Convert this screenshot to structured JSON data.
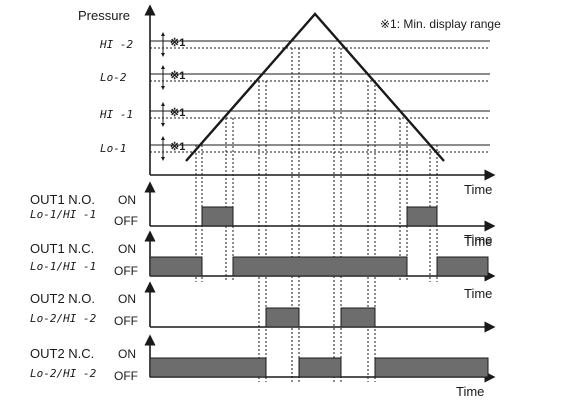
{
  "top": {
    "y_axis_label": "Pressure",
    "x_axis_label": "Time",
    "note": "※1: Min. display range",
    "levels": [
      {
        "code": "HI -2",
        "mark": "※1"
      },
      {
        "code": "Lo-2",
        "mark": "※1"
      },
      {
        "code": "HI -1",
        "mark": "※1"
      },
      {
        "code": "Lo-1",
        "mark": "※1"
      }
    ]
  },
  "outputs": [
    {
      "title": "OUT1 N.O.",
      "code": "Lo-1/HI -1",
      "on": "ON",
      "off": "OFF",
      "time": "Time"
    },
    {
      "title": "OUT1 N.C.",
      "code": "Lo-1/HI -1",
      "on": "ON",
      "off": "OFF",
      "time": "Time"
    },
    {
      "title": "OUT2 N.O.",
      "code": "Lo-2/HI -2",
      "on": "ON",
      "off": "OFF",
      "time": "Time"
    },
    {
      "title": "OUT2 N.C.",
      "code": "Lo-2/HI -2",
      "on": "ON",
      "off": "OFF",
      "time": "Time"
    }
  ],
  "colors": {
    "line": "#1a1a1a",
    "fill": "#6d6d6d"
  }
}
